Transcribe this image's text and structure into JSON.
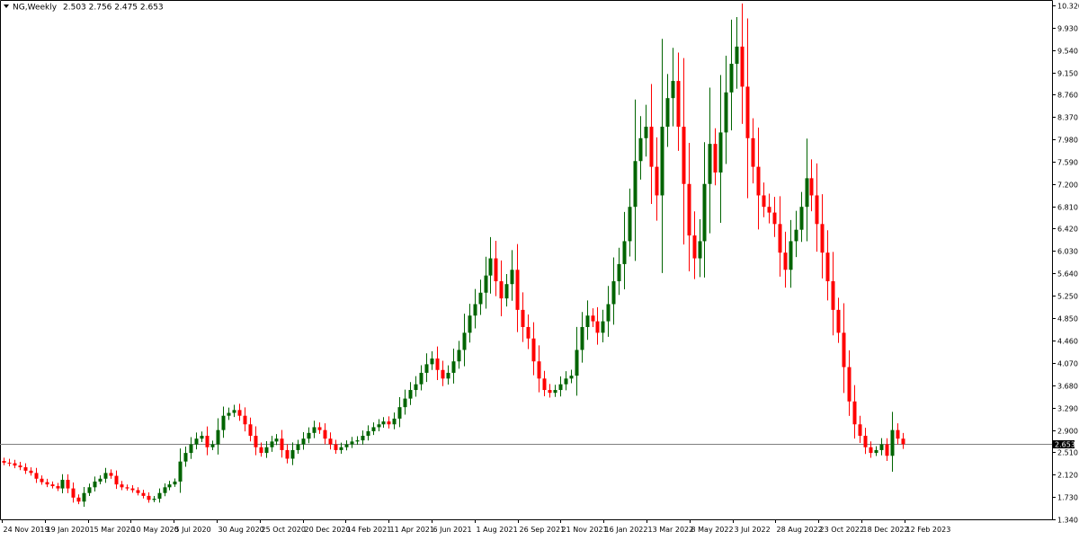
{
  "header": {
    "symbol": "NG,Weekly",
    "ohlc": "2.503 2.756 2.475 2.653",
    "menu_icon": "dropdown-triangle-icon"
  },
  "price_tag": "2.653",
  "colors": {
    "bull": "#006400",
    "bear": "#ff0000",
    "axis": "#000000",
    "price_line": "#7f7f7f",
    "price_tag_bg": "#000000",
    "price_tag_text": "#ffffff"
  },
  "chart_data": {
    "type": "candlestick",
    "title": "NG,Weekly",
    "ylim": [
      1.34,
      10.32
    ],
    "current_price": 2.653,
    "y_ticks": [
      "10.320",
      "9.930",
      "9.540",
      "9.150",
      "8.760",
      "8.370",
      "7.980",
      "7.590",
      "7.200",
      "6.810",
      "6.420",
      "6.030",
      "5.640",
      "5.250",
      "4.850",
      "4.460",
      "4.070",
      "3.680",
      "3.290",
      "2.900",
      "2.510",
      "2.120",
      "1.730",
      "1.340"
    ],
    "x_ticks": [
      "24 Nov 2019",
      "19 Jan 2020",
      "15 Mar 2020",
      "10 May 2020",
      "5 Jul 2020",
      "30 Aug 2020",
      "25 Oct 2020",
      "20 Dec 2020",
      "14 Feb 2021",
      "11 Apr 2021",
      "6 Jun 2021",
      "1 Aug 2021",
      "26 Sep 2021",
      "21 Nov 2021",
      "16 Jan 2022",
      "13 Mar 2022",
      "8 May 2022",
      "3 Jul 2022",
      "28 Aug 2022",
      "23 Oct 2022",
      "18 Dec 2022",
      "12 Feb 2023"
    ],
    "closes": [
      2.33,
      2.32,
      2.28,
      2.25,
      2.19,
      2.15,
      2.05,
      1.99,
      1.95,
      1.92,
      1.88,
      2.03,
      1.88,
      1.72,
      1.65,
      1.8,
      1.9,
      2.0,
      2.05,
      2.15,
      2.1,
      1.95,
      1.9,
      1.88,
      1.85,
      1.8,
      1.75,
      1.68,
      1.7,
      1.8,
      1.9,
      1.95,
      2.0,
      2.35,
      2.5,
      2.65,
      2.75,
      2.8,
      2.6,
      2.65,
      2.9,
      3.15,
      3.2,
      3.25,
      3.15,
      3.0,
      2.8,
      2.6,
      2.5,
      2.6,
      2.7,
      2.75,
      2.55,
      2.4,
      2.55,
      2.65,
      2.75,
      2.85,
      2.95,
      2.9,
      2.75,
      2.65,
      2.55,
      2.6,
      2.65,
      2.7,
      2.72,
      2.8,
      2.88,
      2.95,
      3.0,
      3.05,
      3.0,
      3.1,
      3.3,
      3.45,
      3.6,
      3.7,
      3.9,
      4.05,
      4.15,
      3.95,
      3.8,
      3.9,
      4.1,
      4.3,
      4.6,
      4.9,
      5.1,
      5.3,
      5.6,
      5.9,
      5.5,
      5.2,
      5.45,
      5.7,
      5.0,
      4.7,
      4.5,
      4.1,
      3.8,
      3.6,
      3.55,
      3.6,
      3.7,
      3.8,
      3.85,
      4.3,
      4.7,
      4.9,
      4.8,
      4.6,
      4.8,
      5.1,
      5.5,
      5.8,
      6.2,
      6.8,
      7.6,
      8.0,
      8.2,
      7.5,
      7.0,
      8.2,
      8.7,
      9.0,
      8.2,
      7.2,
      6.3,
      5.9,
      6.2,
      7.2,
      7.9,
      7.4,
      8.1,
      8.8,
      9.3,
      9.6,
      8.9,
      8.0,
      7.5,
      7.0,
      6.8,
      6.7,
      6.5,
      6.0,
      5.7,
      6.2,
      6.4,
      6.8,
      7.3,
      7.0,
      6.5,
      6.0,
      5.5,
      5.0,
      4.6,
      4.0,
      3.4,
      3.0,
      2.8,
      2.6,
      2.5,
      2.55,
      2.65,
      2.45,
      2.9,
      2.75,
      2.653
    ]
  },
  "annotations": {}
}
